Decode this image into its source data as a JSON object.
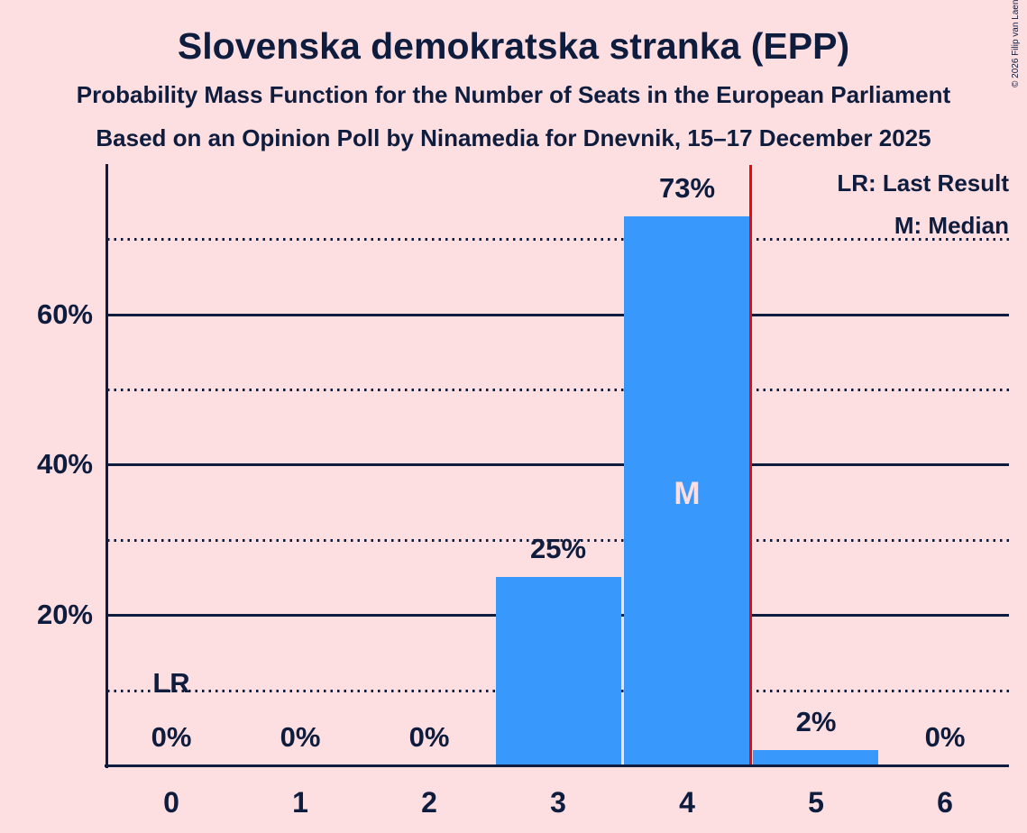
{
  "title": "Slovenska demokratska stranka (EPP)",
  "subtitle1": "Probability Mass Function for the Number of Seats in the European Parliament",
  "subtitle2": "Based on an Opinion Poll by Ninamedia for Dnevnik, 15–17 December 2025",
  "copyright": "© 2026 Filip van Laenen",
  "legend": {
    "lr": "LR: Last Result",
    "m": "M: Median"
  },
  "annotations": {
    "last_result_label": "LR",
    "median_label": "M"
  },
  "colors": {
    "background": "#fddee1",
    "bar": "#3898fb",
    "text": "#0e1c3d",
    "last_result_line": "#ff0000",
    "median_text": "#fddee1"
  },
  "chart_data": {
    "type": "bar",
    "title": "Slovenska demokratska stranka (EPP)",
    "xlabel": "",
    "ylabel": "",
    "categories": [
      "0",
      "1",
      "2",
      "3",
      "4",
      "5",
      "6"
    ],
    "values": [
      0,
      0,
      0,
      25,
      73,
      2,
      0
    ],
    "bar_labels": [
      "0%",
      "0%",
      "0%",
      "25%",
      "73%",
      "2%",
      "0%"
    ],
    "y_axis_tick_labels": [
      "20%",
      "40%",
      "60%"
    ],
    "solid_gridlines_pct": [
      20,
      40,
      60
    ],
    "dotted_gridlines_pct": [
      10,
      30,
      50,
      70
    ],
    "ylim": [
      0,
      80
    ],
    "grid": "on",
    "legend_position": "top-right",
    "median_seat_index": 4,
    "last_result_line_between_seats": [
      4,
      5
    ],
    "last_result_annotation_seat_index": 0
  }
}
